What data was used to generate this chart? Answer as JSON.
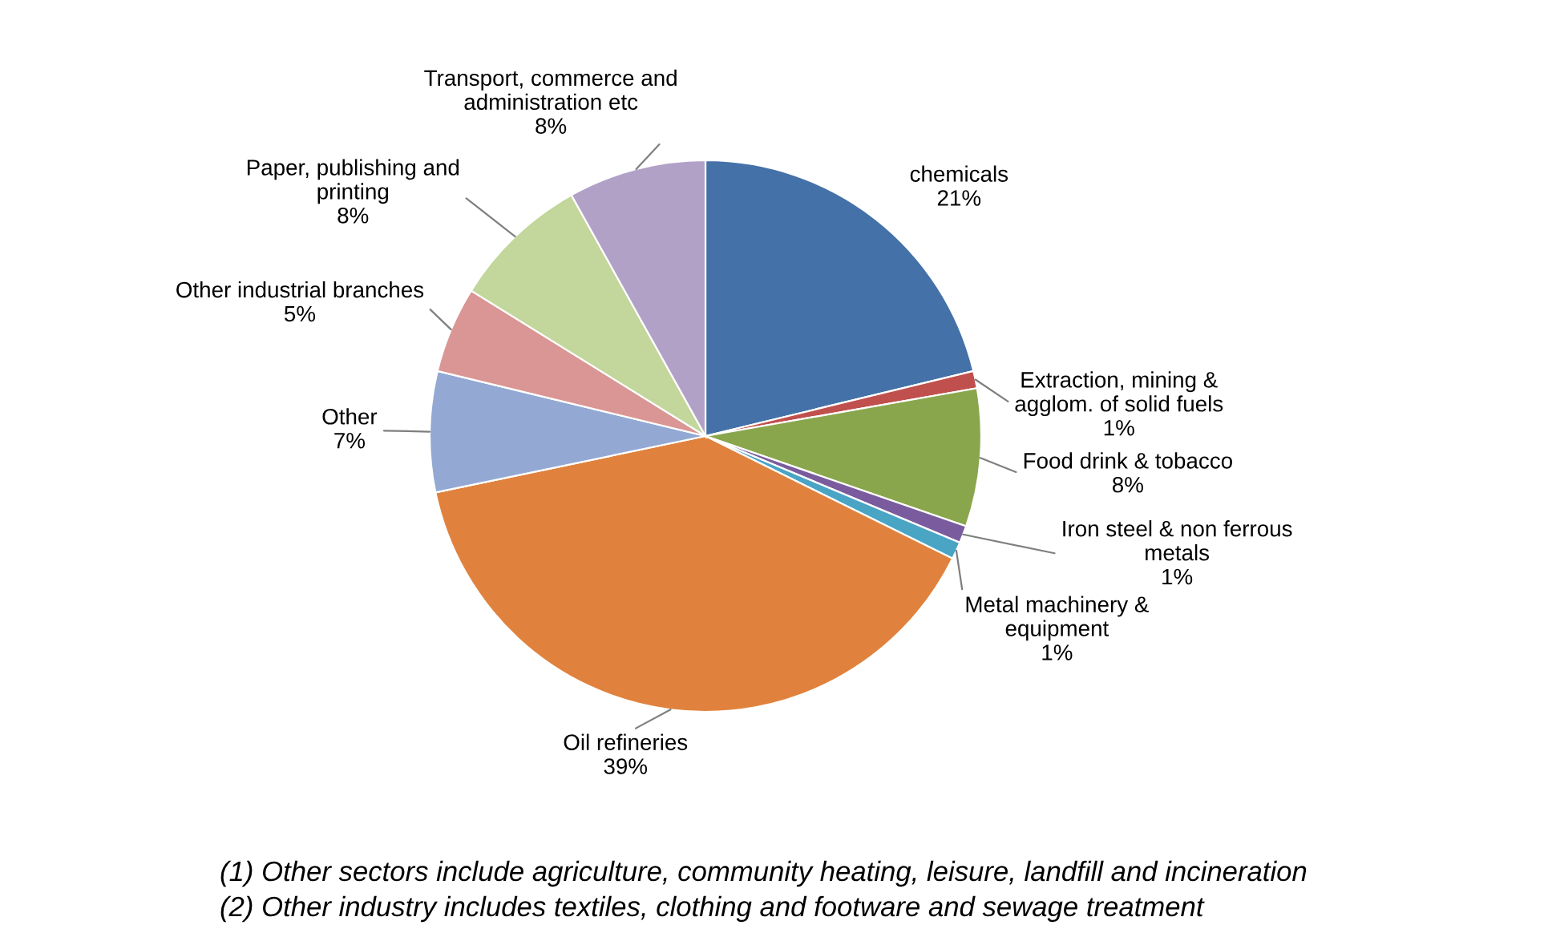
{
  "chart_data": {
    "type": "pie",
    "categories": [
      "chemicals",
      "Extraction, mining &\nagglom. of solid fuels",
      "Food drink & tobacco",
      "Iron steel & non ferrous\nmetals",
      "Metal machinery &\nequipment",
      "Oil refineries",
      "Other",
      "Other industrial branches",
      "Paper, publishing and\nprinting",
      "Transport, commerce and\nadministration etc"
    ],
    "values": [
      21,
      1,
      8,
      1,
      1,
      39,
      7,
      5,
      8,
      8
    ],
    "value_labels": [
      "21%",
      "1%",
      "8%",
      "1%",
      "1%",
      "39%",
      "7%",
      "5%",
      "8%",
      "8%"
    ],
    "colors": [
      "#4471a8",
      "#c0504d",
      "#8aa64d",
      "#7a5c9e",
      "#4aa4c4",
      "#e0823d",
      "#93a9d4",
      "#d99694",
      "#c3d69b",
      "#b2a1c7"
    ],
    "annotations": [
      "(1) Other sectors include agriculture, community heating, leisure, landfill and incineration",
      "(2) Other industry includes textiles, clothing and footware and sewage treatment"
    ]
  }
}
